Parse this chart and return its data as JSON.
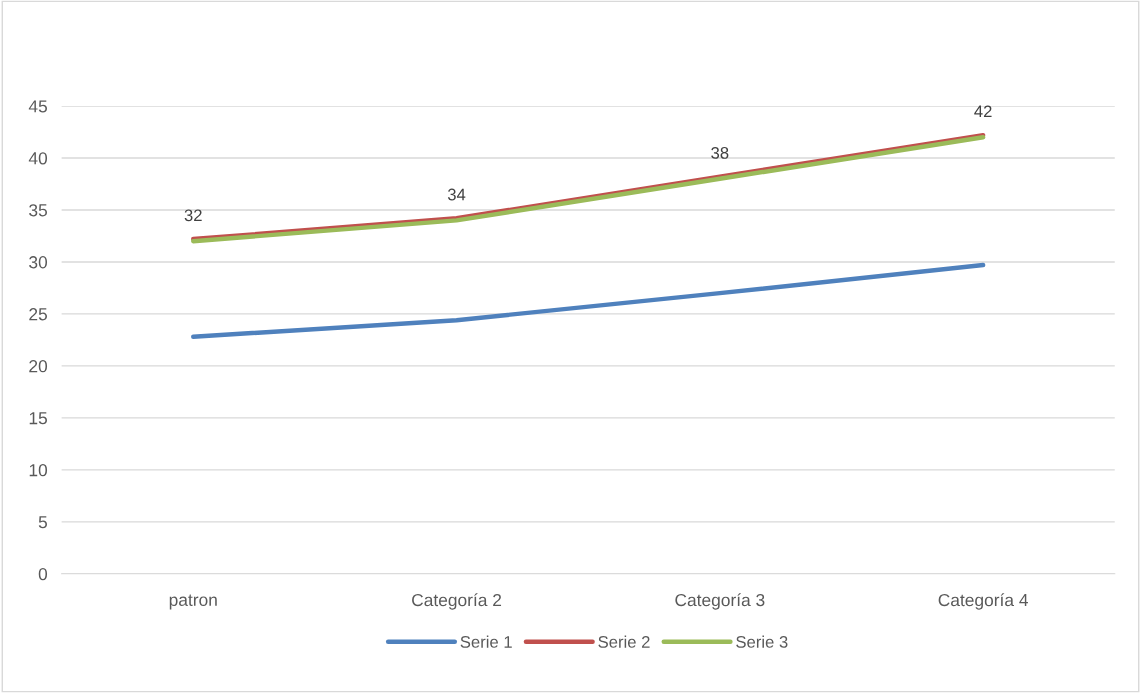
{
  "chart_data": {
    "type": "line",
    "categories": [
      "patron",
      "Categoría 2",
      "Categoría 3",
      "Categoría 4"
    ],
    "series": [
      {
        "name": "Serie 1",
        "color": "#4f81bd",
        "values": [
          22.8,
          24.4,
          27.0,
          29.7
        ]
      },
      {
        "name": "Serie 2",
        "color": "#c0504d",
        "values": [
          32.2,
          34.2,
          38.2,
          42.2
        ]
      },
      {
        "name": "Serie 3",
        "color": "#9bbb59",
        "values": [
          32,
          34,
          38,
          42
        ],
        "value_labels": [
          "32",
          "34",
          "38",
          "42"
        ]
      }
    ],
    "ylim": [
      0,
      45
    ],
    "yticks": [
      0,
      5,
      10,
      15,
      20,
      25,
      30,
      35,
      40,
      45
    ],
    "grid": "y",
    "legend": "bottom",
    "marker": "none",
    "line_style": "solid"
  }
}
